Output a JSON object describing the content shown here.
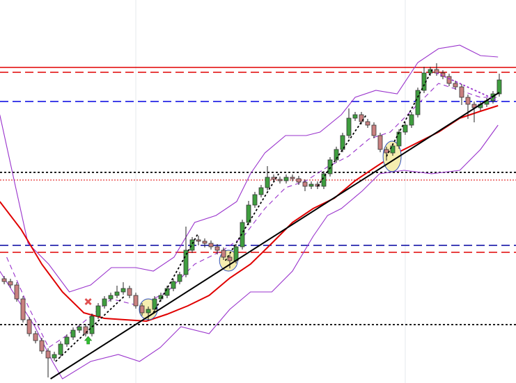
{
  "chart_data": {
    "type": "candlestick",
    "xlim": [
      -0.67,
      81.67
    ],
    "ylim": [
      0,
      551
    ],
    "up_color": "#3f9e3f",
    "down_color": "#c98080",
    "xgrid": [
      21,
      64
    ],
    "open": [
      150,
      146,
      141,
      121,
      91,
      71,
      61,
      46,
      36,
      41,
      56,
      66,
      76,
      81,
      71,
      96,
      111,
      121,
      126,
      131,
      136,
      126,
      111,
      101,
      106,
      121,
      126,
      136,
      146,
      156,
      191,
      206,
      204,
      201,
      196,
      191,
      181,
      176,
      196,
      231,
      256,
      271,
      281,
      296,
      293,
      291,
      296,
      294,
      289,
      283,
      286,
      283,
      301,
      321,
      336,
      356,
      381,
      386,
      376,
      371,
      356,
      336,
      331,
      341,
      361,
      371,
      386,
      421,
      446,
      451,
      446,
      441,
      431,
      426,
      411,
      401,
      396,
      401,
      406,
      416
    ],
    "high": [
      154,
      150,
      145,
      125,
      95,
      75,
      65,
      50,
      45,
      60,
      70,
      80,
      85,
      85,
      100,
      115,
      125,
      130,
      140,
      145,
      140,
      130,
      115,
      110,
      125,
      130,
      140,
      150,
      160,
      225,
      210,
      212,
      208,
      205,
      200,
      195,
      185,
      200,
      235,
      262,
      275,
      285,
      312,
      300,
      297,
      300,
      300,
      298,
      293,
      290,
      290,
      305,
      325,
      340,
      360,
      395,
      390,
      390,
      380,
      375,
      360,
      340,
      345,
      365,
      375,
      390,
      425,
      455,
      455,
      460,
      450,
      445,
      435,
      430,
      415,
      405,
      405,
      410,
      420,
      445
    ],
    "low": [
      142,
      137,
      117,
      87,
      67,
      57,
      42,
      8,
      32,
      37,
      52,
      62,
      72,
      67,
      67,
      92,
      107,
      117,
      122,
      127,
      122,
      107,
      97,
      90,
      102,
      117,
      122,
      132,
      142,
      152,
      187,
      198,
      195,
      192,
      185,
      177,
      165,
      172,
      192,
      227,
      252,
      267,
      277,
      289,
      287,
      287,
      290,
      285,
      276,
      279,
      279,
      279,
      297,
      317,
      332,
      352,
      377,
      372,
      367,
      352,
      332,
      320,
      327,
      337,
      357,
      367,
      382,
      417,
      442,
      442,
      437,
      427,
      422,
      400,
      380,
      375,
      392,
      397,
      402,
      412
    ],
    "close": [
      146,
      141,
      121,
      91,
      71,
      61,
      46,
      36,
      41,
      56,
      66,
      76,
      81,
      71,
      96,
      111,
      121,
      126,
      131,
      136,
      126,
      111,
      101,
      106,
      121,
      126,
      136,
      146,
      156,
      191,
      206,
      204,
      201,
      196,
      191,
      181,
      176,
      196,
      231,
      256,
      271,
      281,
      296,
      293,
      291,
      296,
      294,
      289,
      283,
      286,
      283,
      301,
      321,
      336,
      356,
      381,
      386,
      376,
      371,
      356,
      336,
      331,
      341,
      361,
      371,
      386,
      421,
      446,
      451,
      446,
      441,
      431,
      426,
      411,
      401,
      396,
      401,
      406,
      416,
      436
    ],
    "lines": [
      {
        "color": "#9932cc",
        "dash": "solid",
        "x": [
          -0.7,
          1.6,
          3.8,
          7.1,
          10.4,
          13.8,
          17.1,
          21,
          23.8,
          27.1,
          30.4,
          33.8,
          37.1,
          39.3,
          41.6,
          44.9,
          48.2,
          50.4,
          53.8,
          56,
          59.3,
          62.7,
          66,
          69.3,
          72.7,
          76,
          78.8
        ],
        "values": [
          386,
          291,
          201,
          171,
          131,
          141,
          166,
          166,
          161,
          181,
          231,
          241,
          261,
          301,
          331,
          356,
          356,
          361,
          386,
          411,
          421,
          416,
          461,
          481,
          486,
          471,
          469
        ]
      },
      {
        "color": "#9932cc",
        "dash": "solid",
        "x": [
          -0.7,
          4.9,
          7.7,
          9.3,
          13.8,
          18.2,
          21.6,
          24.9,
          28.2,
          32.7,
          36,
          39.3,
          42.7,
          46,
          49.3,
          51.6,
          53.8,
          57.1,
          59.9,
          63.8,
          68.2,
          72.7,
          76,
          78.8
        ],
        "values": [
          161,
          81,
          31,
          6,
          31,
          41,
          31,
          51,
          81,
          71,
          106,
          131,
          131,
          161,
          211,
          241,
          251,
          276,
          301,
          306,
          301,
          306,
          336,
          371
        ]
      },
      {
        "color": "#9932cc",
        "dash": "dashed",
        "x": [
          0.4,
          3.8,
          7.1,
          10.4,
          13.8,
          17.1,
          21.6,
          26,
          30.4,
          34.9,
          38.2,
          41.6,
          44.9,
          48.2,
          51.6,
          54.9,
          58.2,
          61.6,
          66,
          69.3,
          72.7,
          76,
          78.8
        ],
        "values": [
          181,
          111,
          51,
          71,
          96,
          121,
          111,
          131,
          171,
          191,
          211,
          251,
          281,
          291,
          311,
          326,
          351,
          361,
          401,
          431,
          421,
          411,
          411
        ]
      },
      {
        "color": "#e00000",
        "dash": "solid",
        "x": [
          -0.7,
          2.7,
          6,
          9.3,
          12.7,
          16,
          19.3,
          22.7,
          26,
          29.3,
          32.7,
          36,
          39.3,
          42.7,
          46,
          49.3,
          52.7,
          56,
          59.3,
          62.7,
          66,
          69.3,
          72.7,
          76,
          78.8
        ],
        "values": [
          261,
          221,
          171,
          131,
          101,
          93,
          91,
          89,
          99,
          111,
          126,
          151,
          171,
          201,
          231,
          251,
          266,
          291,
          311,
          331,
          346,
          361,
          381,
          391,
          399
        ]
      }
    ],
    "levels": [
      {
        "value": 454,
        "color": "#e00000",
        "dash": "solid"
      },
      {
        "value": 447,
        "color": "#e00000",
        "dash": "dashed"
      },
      {
        "value": 405,
        "color": "#0000e0",
        "dash": "dashed"
      },
      {
        "value": 303,
        "color": "#000000",
        "dash": "dotted"
      },
      {
        "value": 292,
        "color": "#e00000",
        "dash": "fine"
      },
      {
        "value": 198,
        "color": "#0000a0",
        "dash": "dashed"
      },
      {
        "value": 188,
        "color": "#e00000",
        "dash": "dashed"
      },
      {
        "value": 84,
        "color": "#000000",
        "dash": "dotted"
      }
    ],
    "trendlines": [
      {
        "color": "#000000",
        "dash": "solid",
        "x": [
          7.4,
          79
        ],
        "values": [
          6,
          418
        ]
      },
      {
        "color": "#000000",
        "dash": "dotted",
        "x": [
          8.2,
          19.3
        ],
        "values": [
          31,
          126
        ]
      },
      {
        "color": "#000000",
        "dash": "dotted",
        "x": [
          23.8,
          31
        ],
        "values": [
          101,
          216
        ]
      },
      {
        "color": "#000000",
        "dash": "dotted",
        "x": [
          35.3,
          43.8
        ],
        "values": [
          176,
          301
        ]
      },
      {
        "color": "#000000",
        "dash": "dotted",
        "x": [
          50,
          57.8
        ],
        "values": [
          283,
          386
        ]
      },
      {
        "color": "#000000",
        "dash": "dotted",
        "x": [
          61,
          68.3
        ],
        "values": [
          326,
          451
        ]
      },
      {
        "color": "#9932cc",
        "dash": "dotted",
        "x": [
          69,
          78.8
        ],
        "values": [
          446,
          406
        ]
      }
    ],
    "highlights": {
      "color": "#f5eeb0",
      "x": [
        23,
        35.8,
        61.9
      ],
      "values": [
        106,
        176,
        326
      ]
    },
    "markers": [
      {
        "shape": "cross",
        "color": "#e05050",
        "x": 13.4,
        "value": 117
      },
      {
        "shape": "arrow-up",
        "color": "#30c030",
        "x": 13.4,
        "value": 61
      }
    ]
  }
}
